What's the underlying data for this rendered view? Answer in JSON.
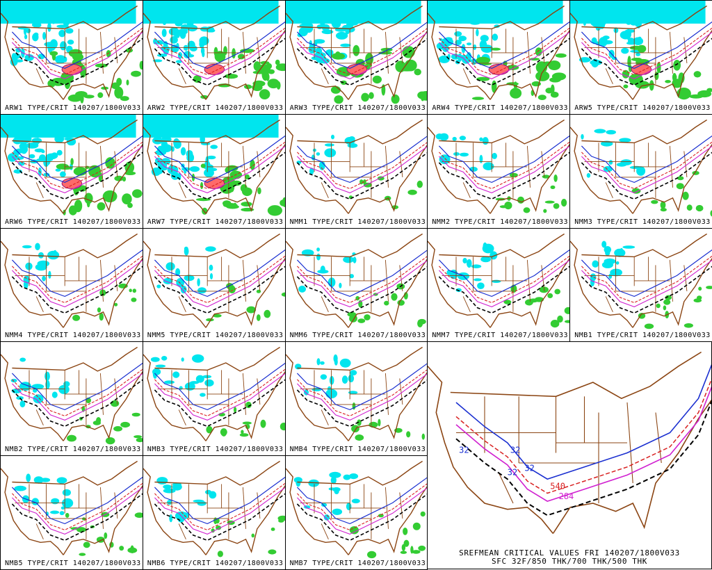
{
  "panels": [
    {
      "id": "ARW1",
      "label": "ARW1 TYPE/CRIT 140207/1800V033",
      "snow": 0.95,
      "rain": 0.9,
      "ice": true
    },
    {
      "id": "ARW2",
      "label": "ARW2 TYPE/CRIT 140207/1800V033",
      "snow": 0.95,
      "rain": 0.9,
      "ice": true
    },
    {
      "id": "ARW3",
      "label": "ARW3 TYPE/CRIT 140207/1800V033",
      "snow": 0.95,
      "rain": 0.9,
      "ice": true
    },
    {
      "id": "ARW4",
      "label": "ARW4 TYPE/CRIT 140207/1800V033",
      "snow": 0.95,
      "rain": 0.9,
      "ice": true
    },
    {
      "id": "ARW5",
      "label": "ARW5 TYPE/CRIT 140207/1800V033",
      "snow": 0.95,
      "rain": 0.9,
      "ice": true
    },
    {
      "id": "ARW6",
      "label": "ARW6 TYPE/CRIT 140207/1800V033",
      "snow": 0.95,
      "rain": 0.9,
      "ice": true
    },
    {
      "id": "ARW7",
      "label": "ARW7 TYPE/CRIT 140207/1800V033",
      "snow": 0.95,
      "rain": 0.85,
      "ice": true
    },
    {
      "id": "NMM1",
      "label": "NMM1 TYPE/CRIT 140207/1800V033",
      "snow": 0.3,
      "rain": 0.3,
      "ice": false
    },
    {
      "id": "NMM2",
      "label": "NMM2 TYPE/CRIT 140207/1800V033",
      "snow": 0.35,
      "rain": 0.45,
      "ice": false
    },
    {
      "id": "NMM3",
      "label": "NMM3 TYPE/CRIT 140207/1800V033",
      "snow": 0.3,
      "rain": 0.35,
      "ice": false
    },
    {
      "id": "NMM4",
      "label": "NMM4 TYPE/CRIT 140207/1800V033",
      "snow": 0.3,
      "rain": 0.3,
      "ice": false
    },
    {
      "id": "NMM5",
      "label": "NMM5 TYPE/CRIT 140207/1800V033",
      "snow": 0.35,
      "rain": 0.3,
      "ice": false
    },
    {
      "id": "NMM6",
      "label": "NMM6 TYPE/CRIT 140207/1800V033",
      "snow": 0.3,
      "rain": 0.45,
      "ice": false
    },
    {
      "id": "NMM7",
      "label": "NMM7 TYPE/CRIT 140207/1800V033",
      "snow": 0.35,
      "rain": 0.4,
      "ice": false
    },
    {
      "id": "NMB1",
      "label": "NMB1 TYPE/CRIT 140207/1800V033",
      "snow": 0.35,
      "rain": 0.4,
      "ice": false
    },
    {
      "id": "NMB2",
      "label": "NMB2 TYPE/CRIT 140207/1800V033",
      "snow": 0.35,
      "rain": 0.45,
      "ice": false
    },
    {
      "id": "NMB3",
      "label": "NMB3 TYPE/CRIT 140207/1800V033",
      "snow": 0.4,
      "rain": 0.4,
      "ice": false
    },
    {
      "id": "NMB4",
      "label": "NMB4 TYPE/CRIT 140207/1800V033",
      "snow": 0.4,
      "rain": 0.3,
      "ice": false
    },
    {
      "id": "NMB5",
      "label": "NMB5 TYPE/CRIT 140207/1800V033",
      "snow": 0.35,
      "rain": 0.5,
      "ice": false
    },
    {
      "id": "NMB6",
      "label": "NMB6 TYPE/CRIT 140207/1800V033",
      "snow": 0.35,
      "rain": 0.4,
      "ice": false
    },
    {
      "id": "NMB7",
      "label": "NMB7 TYPE/CRIT 140207/1800V033",
      "snow": 0.4,
      "rain": 0.4,
      "ice": false
    }
  ],
  "mean_panel": {
    "title_line1": "SREFMEAN CRITICAL VALUES FRI 140207/1800V033",
    "title_line2": "SFC 32F/850 THK/700 THK/500 THK",
    "contour_labels": [
      {
        "text": "32",
        "color": "#1a2fd0"
      },
      {
        "text": "32",
        "color": "#1a2fd0"
      },
      {
        "text": "32",
        "color": "#1a2fd0"
      },
      {
        "text": "32",
        "color": "#1a2fd0"
      },
      {
        "text": "540",
        "color": "#d82020"
      },
      {
        "text": "284",
        "color": "#d020d0"
      }
    ]
  },
  "colors": {
    "map_lines": "#8b4513",
    "snow": "#00e5ee",
    "rain": "#33cc33",
    "ice": "#ff6a6a",
    "sfc_32f": "#1a2fd0",
    "thk_850": "#d82020",
    "thk_700": "#d020d0",
    "thk_500": "#000000"
  }
}
